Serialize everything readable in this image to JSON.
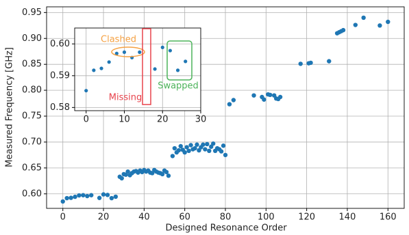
{
  "chart_data": [
    {
      "type": "scatter",
      "x_label": "Designed Resonance Order",
      "y_label": "Measured Frequency [GHz]",
      "color": "#1f77b4",
      "grid": true,
      "x": [
        0,
        2,
        4,
        6,
        8,
        10,
        12,
        14,
        18,
        20,
        22,
        24,
        26,
        28,
        29,
        30,
        31,
        32,
        33,
        34,
        35,
        36,
        37,
        38,
        39,
        40,
        41,
        42,
        43,
        44,
        45,
        46,
        47,
        48,
        49,
        50,
        51,
        52,
        54,
        55,
        56,
        57,
        58,
        59,
        60,
        61,
        62,
        63,
        64,
        65,
        66,
        67,
        68,
        69,
        70,
        71,
        72,
        73,
        74,
        75,
        76,
        77,
        78,
        79,
        80,
        82,
        84,
        94,
        98,
        99,
        101,
        102,
        104,
        105,
        106,
        107,
        117,
        121,
        122,
        131,
        135,
        136,
        137,
        138,
        144,
        148,
        156,
        160
      ],
      "values": [
        0.5853,
        0.5917,
        0.5923,
        0.5943,
        0.597,
        0.5974,
        0.5957,
        0.5974,
        0.5921,
        0.5989,
        0.5979,
        0.5917,
        0.5945,
        0.633,
        0.63,
        0.638,
        0.637,
        0.643,
        0.636,
        0.64,
        0.643,
        0.644,
        0.641,
        0.645,
        0.642,
        0.646,
        0.643,
        0.645,
        0.641,
        0.64,
        0.646,
        0.643,
        0.641,
        0.64,
        0.638,
        0.645,
        0.642,
        0.635,
        0.673,
        0.688,
        0.68,
        0.684,
        0.692,
        0.685,
        0.68,
        0.69,
        0.683,
        0.694,
        0.686,
        0.688,
        0.695,
        0.684,
        0.69,
        0.695,
        0.686,
        0.696,
        0.683,
        0.691,
        0.697,
        0.683,
        0.688,
        0.686,
        0.682,
        0.693,
        0.675,
        0.773,
        0.781,
        0.79,
        0.787,
        0.782,
        0.792,
        0.791,
        0.79,
        0.784,
        0.783,
        0.787,
        0.851,
        0.852,
        0.853,
        0.856,
        0.91,
        0.912,
        0.914,
        0.916,
        0.926,
        0.94,
        0.925,
        0.932
      ],
      "xlim": [
        -8,
        168
      ],
      "ylim": [
        0.572,
        0.961
      ],
      "xticks": [
        0,
        20,
        40,
        60,
        80,
        100,
        120,
        140,
        160
      ],
      "yticks": [
        {
          "value": 0.6,
          "label": "0.60"
        },
        0.65,
        {
          "value": 0.7,
          "label": "0.70"
        },
        0.75,
        {
          "value": 0.8,
          "label": "0.80"
        },
        0.85,
        {
          "value": 0.9,
          "label": "0.90"
        },
        0.95
      ]
    },
    {
      "type": "scatter",
      "color": "#1f77b4",
      "grid": true,
      "x": [
        0,
        2,
        4,
        6,
        8,
        10,
        12,
        14,
        18,
        20,
        22,
        24,
        26
      ],
      "values": [
        0.5853,
        0.5917,
        0.5923,
        0.5943,
        0.597,
        0.5974,
        0.5957,
        0.5974,
        0.5921,
        0.5989,
        0.5979,
        0.5917,
        0.5945
      ],
      "xlim": [
        -3,
        30
      ],
      "ylim": [
        0.579,
        0.605
      ],
      "xticks": [
        0,
        10,
        20,
        30
      ],
      "yticks": [
        0.58,
        0.59,
        {
          "value": 0.6,
          "label": "0.60"
        }
      ],
      "annotations": [
        {
          "text": "Clashed",
          "color": "#f5a142"
        },
        {
          "text": "Missing",
          "color": "#e8434c"
        },
        {
          "text": "Swapped",
          "color": "#4cb35a"
        }
      ]
    }
  ]
}
